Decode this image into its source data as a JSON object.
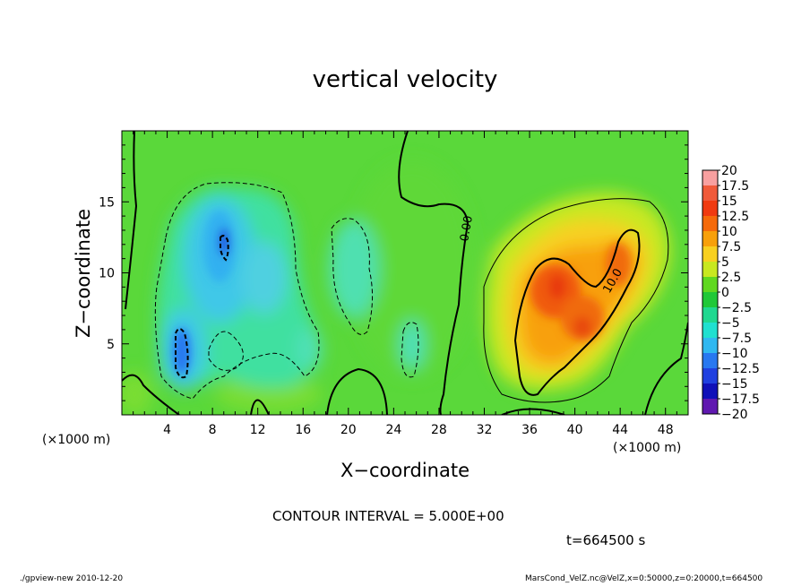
{
  "chart_data": {
    "type": "heatmap",
    "title": "vertical velocity",
    "xlabel": "X−coordinate",
    "ylabel": "Z−coordinate",
    "x_unit_label": "(×1000 m)",
    "xlim": [
      0,
      50
    ],
    "ylim": [
      0,
      20
    ],
    "x_ticks": [
      4,
      8,
      12,
      16,
      20,
      24,
      28,
      32,
      36,
      40,
      44,
      48
    ],
    "y_ticks": [
      5,
      10,
      15
    ],
    "colorbar": {
      "levels": [
        "20",
        "17.5",
        "15",
        "12.5",
        "10",
        "7.5",
        "5",
        "2.5",
        "0",
        "−2.5",
        "−5",
        "−7.5",
        "−10",
        "−12.5",
        "−15",
        "−17.5",
        "−20"
      ],
      "colors": [
        "#f8a0a0",
        "#f05a3a",
        "#f03a10",
        "#f56a0a",
        "#f8a00a",
        "#f8d020",
        "#c8e820",
        "#60d820",
        "#20c838",
        "#20d890",
        "#20e0d0",
        "#30b8f0",
        "#2878f0",
        "#2040e0",
        "#1010b8",
        "#6018b0"
      ]
    },
    "contour_labels": [
      "0.00",
      "10.0"
    ],
    "grid": false
  },
  "annotations": {
    "contour_interval": "CONTOUR INTERVAL = 5.000E+00",
    "time": "t=664500 s",
    "footer_left": "./gpview-new  2010-12-20",
    "footer_right": "MarsCond_VelZ.nc@VelZ,x=0:50000,z=0:20000,t=664500"
  }
}
